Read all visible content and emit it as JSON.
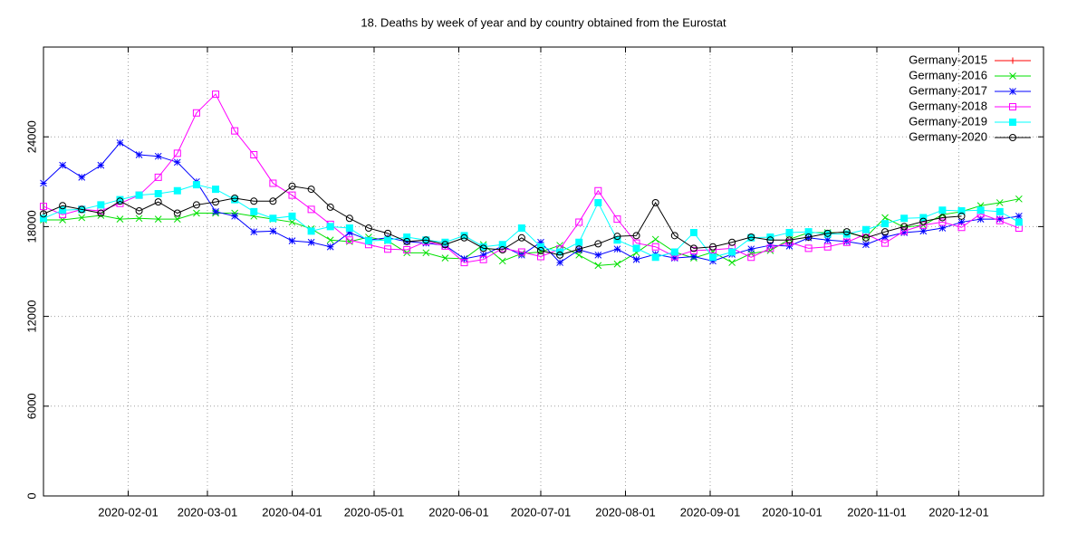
{
  "chart_data": {
    "type": "line",
    "title": "18. Deaths by week of year and by country obtained from the Eurostat",
    "x": [
      "2020-01-01",
      "2020-01-08",
      "2020-01-15",
      "2020-01-22",
      "2020-01-29",
      "2020-02-05",
      "2020-02-12",
      "2020-02-19",
      "2020-02-26",
      "2020-03-04",
      "2020-03-11",
      "2020-03-18",
      "2020-03-25",
      "2020-04-01",
      "2020-04-08",
      "2020-04-15",
      "2020-04-22",
      "2020-04-29",
      "2020-05-06",
      "2020-05-13",
      "2020-05-20",
      "2020-05-27",
      "2020-06-03",
      "2020-06-10",
      "2020-06-17",
      "2020-06-24",
      "2020-07-01",
      "2020-07-08",
      "2020-07-15",
      "2020-07-22",
      "2020-07-29",
      "2020-08-05",
      "2020-08-12",
      "2020-08-19",
      "2020-08-26",
      "2020-09-02",
      "2020-09-09",
      "2020-09-16",
      "2020-09-23",
      "2020-09-30",
      "2020-10-07",
      "2020-10-14",
      "2020-10-21",
      "2020-10-28",
      "2020-11-04",
      "2020-11-11",
      "2020-11-18",
      "2020-11-25",
      "2020-12-02",
      "2020-12-09",
      "2020-12-16",
      "2020-12-23"
    ],
    "xlim": [
      "2020-01-01",
      "2021-01-01"
    ],
    "xticks": [
      "2020-02-01",
      "2020-03-01",
      "2020-04-01",
      "2020-05-01",
      "2020-06-01",
      "2020-07-01",
      "2020-08-01",
      "2020-09-01",
      "2020-10-01",
      "2020-11-01",
      "2020-12-01"
    ],
    "ylim": [
      0,
      30000
    ],
    "yticks": [
      0,
      6000,
      12000,
      18000,
      24000
    ],
    "grid": true,
    "legend": "top-right",
    "series": [
      {
        "name": "Germany-2015",
        "color": "#ff0000",
        "marker": "plus",
        "values": [
          null,
          null,
          null,
          null,
          null,
          null,
          null,
          null,
          null,
          null,
          null,
          null,
          null,
          null,
          null,
          null,
          null,
          null,
          null,
          null,
          null,
          null,
          null,
          null,
          null,
          null,
          null,
          null,
          null,
          null,
          null,
          null,
          null,
          null,
          null,
          null,
          null,
          null,
          null,
          null,
          null,
          null,
          null,
          null,
          null,
          null,
          null,
          null,
          null,
          null,
          null,
          null
        ]
      },
      {
        "name": "Germany-2016",
        "color": "#00e000",
        "marker": "cross",
        "values": [
          18450,
          18450,
          18600,
          18750,
          18500,
          18550,
          18500,
          18500,
          18900,
          18900,
          18900,
          18700,
          18500,
          18300,
          17850,
          17100,
          17000,
          17300,
          17050,
          16250,
          16250,
          15900,
          15850,
          16800,
          15700,
          16200,
          16300,
          16750,
          16100,
          15400,
          15500,
          16250,
          17150,
          16300,
          15900,
          16300,
          15600,
          16200,
          16400,
          17150,
          17600,
          17600,
          17600,
          17300,
          18600,
          17950,
          18100,
          18800,
          19000,
          19400,
          19600,
          19850
        ]
      },
      {
        "name": "Germany-2017",
        "color": "#0000ff",
        "marker": "star",
        "values": [
          20900,
          22100,
          21300,
          22100,
          23600,
          22800,
          22700,
          22300,
          21000,
          19000,
          18700,
          17650,
          17700,
          17050,
          16950,
          16650,
          17600,
          17100,
          17250,
          17000,
          16900,
          16750,
          15850,
          16100,
          16700,
          16100,
          16950,
          15600,
          16450,
          16100,
          16500,
          15800,
          16150,
          15900,
          16000,
          15700,
          16150,
          16500,
          16750,
          16700,
          17250,
          17100,
          17000,
          16800,
          17300,
          17600,
          17700,
          17900,
          18300,
          18500,
          18500,
          18700
        ]
      },
      {
        "name": "Germany-2018",
        "color": "#ff00ff",
        "marker": "square",
        "values": [
          19350,
          18800,
          19150,
          19050,
          19550,
          20100,
          21300,
          22900,
          25600,
          26850,
          24400,
          22800,
          20900,
          20100,
          19150,
          18150,
          17100,
          16800,
          16500,
          16450,
          17000,
          16700,
          15600,
          15800,
          16550,
          16300,
          16000,
          16500,
          18300,
          20400,
          18500,
          16900,
          16650,
          16000,
          16400,
          16450,
          16550,
          15950,
          16550,
          16950,
          16550,
          16650,
          16950,
          17500,
          16900,
          17700,
          18100,
          18300,
          17950,
          18850,
          18400,
          17900
        ]
      },
      {
        "name": "Germany-2019",
        "color": "#00ffff",
        "marker": "filled-square",
        "values": [
          18550,
          19100,
          19150,
          19450,
          19800,
          20100,
          20200,
          20400,
          20800,
          20500,
          19800,
          19000,
          18550,
          18700,
          17700,
          18000,
          17900,
          17050,
          17100,
          17300,
          17100,
          16950,
          17400,
          16650,
          16800,
          17900,
          16650,
          16300,
          16950,
          19600,
          17100,
          16550,
          15950,
          16300,
          17600,
          15950,
          16300,
          17250,
          17300,
          17600,
          17650,
          17500,
          17500,
          17800,
          18200,
          18550,
          18600,
          19100,
          19050,
          19100,
          19000,
          18300
        ]
      },
      {
        "name": "Germany-2020",
        "color": "#000000",
        "marker": "circle",
        "values": [
          18850,
          19400,
          19150,
          18900,
          19700,
          19050,
          19650,
          18900,
          19450,
          19650,
          19900,
          19700,
          19700,
          20700,
          20500,
          19300,
          18550,
          17900,
          17550,
          17000,
          17100,
          16800,
          17250,
          16550,
          16450,
          17250,
          16400,
          16100,
          16500,
          16850,
          17350,
          17400,
          19600,
          17400,
          16550,
          16650,
          16950,
          17300,
          17100,
          17100,
          17300,
          17550,
          17650,
          17250,
          17650,
          18000,
          18350,
          18600,
          18700,
          null,
          null,
          null
        ]
      }
    ]
  }
}
